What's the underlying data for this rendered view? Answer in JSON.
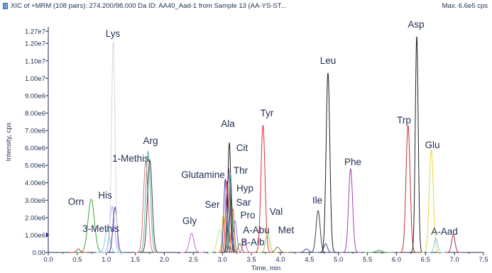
{
  "header": {
    "title": "XIC of +MRM (108 pairs): 274.200/98.000 Da ID: AA40_Aad-1 from Sample 13 (AA-YS-ST...",
    "max_label": "Max. 6.6e5 cps"
  },
  "chart_data": {
    "type": "line",
    "title": "",
    "xlabel": "Time, min",
    "ylabel": "Intensity, cps",
    "xlim": [
      0.0,
      7.5
    ],
    "ylim": [
      0,
      12700000
    ],
    "x_ticks": [
      0.0,
      0.5,
      1.0,
      1.5,
      2.0,
      2.5,
      3.0,
      3.5,
      4.0,
      4.5,
      5.0,
      5.5,
      6.0,
      6.5,
      7.0,
      7.5
    ],
    "x_tick_labels": [
      "0.0",
      "0.5",
      "1.0",
      "1.5",
      "2.0",
      "2.5",
      "3.0",
      "3.5",
      "4.0",
      "4.5",
      "5.0",
      "5.5",
      "6.0",
      "6.5",
      "7.0",
      "7.5"
    ],
    "y_ticks": [
      0,
      1000000,
      2000000,
      3000000,
      4000000,
      5000000,
      6000000,
      7000000,
      8000000,
      9000000,
      10000000,
      11000000,
      12000000,
      12700000
    ],
    "y_tick_labels": [
      "0.00",
      "1.00e6",
      "2.00e6",
      "3.00e6",
      "4.00e6",
      "5.00e6",
      "6.00e6",
      "7.00e6",
      "8.00e6",
      "9.00e6",
      "1.00e7",
      "1.10e7",
      "1.20e7",
      "1.27e7"
    ],
    "grid": false,
    "peaks": [
      {
        "label": "Orn",
        "rt": 0.74,
        "height": 3050000,
        "width": 0.055,
        "color": "#3aa832"
      },
      {
        "label": "3-Methis",
        "rt": 1.02,
        "height": 1400000,
        "width": 0.04,
        "color": "#70d8d8"
      },
      {
        "label": "His",
        "rt": 1.1,
        "height": 2650000,
        "width": 0.04,
        "color": "#c8a0e8"
      },
      {
        "label": "",
        "rt": 1.15,
        "height": 2600000,
        "width": 0.035,
        "color": "#3a3aa8"
      },
      {
        "label": "Lys",
        "rt": 1.12,
        "height": 12100000,
        "width": 0.03,
        "color": "#d8d8d8"
      },
      {
        "label": "1-Methis",
        "rt": 1.68,
        "height": 5200000,
        "width": 0.04,
        "color": "#e07070"
      },
      {
        "label": "Arg",
        "rt": 1.72,
        "height": 5800000,
        "width": 0.04,
        "color": "#58b8a8"
      },
      {
        "label": "",
        "rt": 1.75,
        "height": 5300000,
        "width": 0.04,
        "color": "#404040"
      },
      {
        "label": "Gly",
        "rt": 2.47,
        "height": 1100000,
        "width": 0.04,
        "color": "#d860d8"
      },
      {
        "label": "",
        "rt": 2.95,
        "height": 1300000,
        "width": 0.04,
        "color": "#a8e8a8"
      },
      {
        "label": "Ser",
        "rt": 3.05,
        "height": 4200000,
        "width": 0.025,
        "color": "#3a3aa8"
      },
      {
        "label": "",
        "rt": 3.02,
        "height": 2200000,
        "width": 0.025,
        "color": "#e8b830"
      },
      {
        "label": "Glutamine",
        "rt": 3.08,
        "height": 4100000,
        "width": 0.025,
        "color": "#e03030"
      },
      {
        "label": "Thr",
        "rt": 3.11,
        "height": 4800000,
        "width": 0.025,
        "color": "#a030a0"
      },
      {
        "label": "Ala",
        "rt": 3.12,
        "height": 6300000,
        "width": 0.025,
        "color": "#202020"
      },
      {
        "label": "Cit",
        "rt": 3.14,
        "height": 4500000,
        "width": 0.025,
        "color": "#30a0a0"
      },
      {
        "label": "Hyp",
        "rt": 3.15,
        "height": 3200000,
        "width": 0.025,
        "color": "#307030"
      },
      {
        "label": "Sar",
        "rt": 3.18,
        "height": 2500000,
        "width": 0.025,
        "color": "#c06030"
      },
      {
        "label": "Pro",
        "rt": 3.22,
        "height": 1800000,
        "width": 0.03,
        "color": "#8080d0"
      },
      {
        "label": "A-Abu",
        "rt": 3.38,
        "height": 700000,
        "width": 0.03,
        "color": "#e060a0"
      },
      {
        "label": "B-Aib",
        "rt": 3.3,
        "height": 500000,
        "width": 0.03,
        "color": "#808030"
      },
      {
        "label": "Tyr",
        "rt": 3.7,
        "height": 7300000,
        "width": 0.035,
        "color": "#e03030"
      },
      {
        "label": "Val",
        "rt": 3.78,
        "height": 1100000,
        "width": 0.035,
        "color": "#a8c850"
      },
      {
        "label": "Met",
        "rt": 3.95,
        "height": 300000,
        "width": 0.04,
        "color": "#907050"
      },
      {
        "label": "Ile",
        "rt": 4.65,
        "height": 2400000,
        "width": 0.035,
        "color": "#404040"
      },
      {
        "label": "",
        "rt": 4.78,
        "height": 500000,
        "width": 0.03,
        "color": "#3050a0"
      },
      {
        "label": "Leu",
        "rt": 4.82,
        "height": 10300000,
        "width": 0.032,
        "color": "#202020"
      },
      {
        "label": "Phe",
        "rt": 5.21,
        "height": 4800000,
        "width": 0.035,
        "color": "#a040b0"
      },
      {
        "label": "Trp",
        "rt": 6.2,
        "height": 7300000,
        "width": 0.035,
        "color": "#c03030"
      },
      {
        "label": "Asp",
        "rt": 6.35,
        "height": 12400000,
        "width": 0.025,
        "color": "#202020"
      },
      {
        "label": "Glu",
        "rt": 6.6,
        "height": 5900000,
        "width": 0.035,
        "color": "#e8d840"
      },
      {
        "label": "",
        "rt": 6.68,
        "height": 800000,
        "width": 0.03,
        "color": "#80c8e8"
      },
      {
        "label": "A-Aad",
        "rt": 6.98,
        "height": 1000000,
        "width": 0.03,
        "color": "#b03050"
      },
      {
        "label": "",
        "rt": 0.52,
        "height": 200000,
        "width": 0.03,
        "color": "#c04040"
      },
      {
        "label": "",
        "rt": 4.45,
        "height": 200000,
        "width": 0.04,
        "color": "#5050a0"
      },
      {
        "label": "",
        "rt": 5.7,
        "height": 120000,
        "width": 0.05,
        "color": "#50a050"
      }
    ]
  }
}
